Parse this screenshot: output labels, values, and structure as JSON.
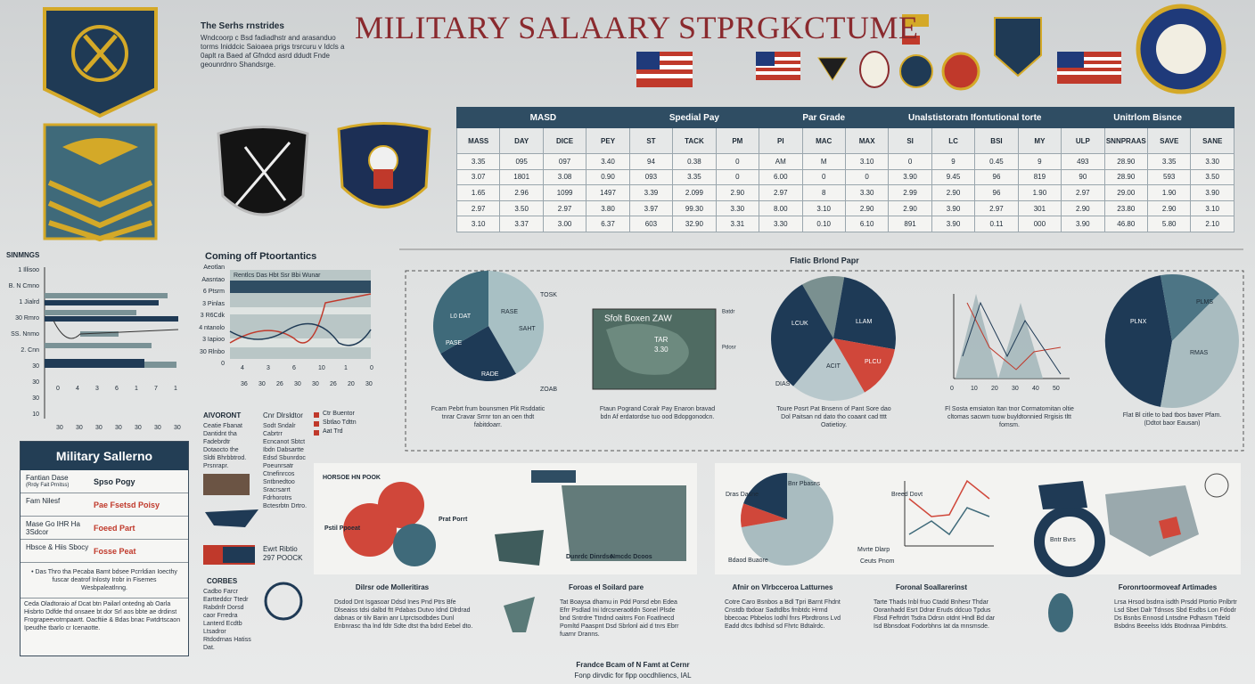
{
  "header": {
    "title": "MILITARY SALAARY STPRGKCTUME",
    "intro_title": "The Serhs rnstrides",
    "intro": "Wndcoorp c Bsd fadiadhstr and arasanduo torms Iniddcic Saioaea prigs trsrcuru v Idcls a 0aplt ra Baed af Gfndcd asrd ddudt Fnde geounrdnro Shandsrge."
  },
  "table": {
    "groups": [
      "MASD",
      "Spedial Pay",
      "Par Grade",
      "Unalstistoratn Ifontutional torte",
      "Unitrlom Bisnce"
    ],
    "columns": [
      "MASS",
      "DAY",
      "DICE",
      "PEY",
      "ST",
      "TACK",
      "PM",
      "PI",
      "MAC",
      "MAX",
      "SI",
      "LC",
      "BSI",
      "MY",
      "ULP",
      "SNNPRAAS",
      "SAVE",
      "SANE"
    ],
    "rows": [
      [
        "3.35",
        "095",
        "097",
        "3.40",
        "94",
        "0.38",
        "0",
        "AM",
        "M",
        "3.10",
        "0",
        "9",
        "0.45",
        "9",
        "493",
        "28.90",
        "3.35",
        "3.30"
      ],
      [
        "3.07",
        "1801",
        "3.08",
        "0.90",
        "093",
        "3.35",
        "0",
        "6.00",
        "0",
        "0",
        "3.90",
        "9.45",
        "96",
        "819",
        "90",
        "28.90",
        "593",
        "3.50"
      ],
      [
        "1.65",
        "2.96",
        "1099",
        "1497",
        "3.39",
        "2.099",
        "2.90",
        "2.97",
        "8",
        "3.30",
        "2.99",
        "2.90",
        "96",
        "1.90",
        "2.97",
        "29.00",
        "1.90",
        "3.90"
      ],
      [
        "2.97",
        "3.50",
        "2.97",
        "3.80",
        "3.97",
        "99.30",
        "3.30",
        "8.00",
        "3.10",
        "2.90",
        "2.90",
        "3.90",
        "2.97",
        "301",
        "2.90",
        "23.80",
        "2.90",
        "3.10"
      ],
      [
        "3.10",
        "3.37",
        "3.00",
        "6.37",
        "603",
        "32.90",
        "3.31",
        "3.30",
        "0.10",
        "6.10",
        "891",
        "3.90",
        "0.11",
        "000",
        "3.90",
        "46.80",
        "5.80",
        "2.10"
      ]
    ]
  },
  "left_chart": {
    "title": "SINMNGS",
    "labels": [
      "1 Illisoo",
      "B. N Cmno",
      "1 Jialrd",
      "30 Rmro",
      "SS. Nnmo",
      "2. Cnn",
      "30",
      "30",
      "30",
      "10"
    ],
    "xlabels": [
      "0",
      "4",
      "3",
      "6",
      "1",
      "7",
      "1"
    ],
    "x2labels": [
      "30",
      "30",
      "30",
      "30",
      "30",
      "30",
      "30"
    ]
  },
  "mid_chart": {
    "title": "Coming off Ptoortantics",
    "legend": "Rentlcs  Das  Hbt  Ssr Bbi  Wunar",
    "ylabels": [
      "Aeotlan",
      "Aasntao",
      "6 Ptsrm",
      "3 Pinlas",
      "3 R6Cdk",
      "4 ntanolo",
      "3 Iapioo",
      "30 Rlnbo",
      "0"
    ],
    "xlabels": [
      "4",
      "3",
      "6",
      "10",
      "1",
      "0"
    ],
    "x2labels": [
      "36",
      "30",
      "26",
      "30",
      "30",
      "26",
      "20",
      "30"
    ]
  },
  "panel": {
    "title": "Flatic Brlond Papr",
    "pie1": {
      "labels": [
        "L0 DAT",
        "RASE",
        "SAHT",
        "PASE",
        "RADE",
        "TOSK",
        "ZOAB"
      ],
      "caption": "Fcam Pebrt frum bounsmen Plit Rsddatic tnrar Cravar Srrnr ton an oen thdt fabitdoarr."
    },
    "map": {
      "labels": [
        "Sfolt Boxen ZAW",
        "TAR",
        "3.30",
        "Batdr",
        "Pdosr"
      ],
      "caption": "Ftaun Pogrand Coralr Pay Enaron bravad bdn Af erdatordse tuo ood Bdopgonodcn."
    },
    "pie3": {
      "labels": [
        "LCUK",
        "LLAM",
        "ACIT",
        "PLCU",
        "DIAS"
      ],
      "caption": "Toure Posrt Pat Bnsenn of Pant Sore dao Dol Paitsan nd dato tho coaant cad tttt Oatietioy."
    },
    "line": {
      "labels": [
        "0",
        "10",
        "20",
        "30",
        "40",
        "50"
      ],
      "caption": "Fl Sosta emsiaton Itan tnor Cormatornitan oltie cltomas sacwm tuow buyldtonnied Rrgisis tltt fomsm."
    },
    "pie5": {
      "labels": [
        "PLNX",
        "PLMS",
        "RMAS"
      ],
      "caption": "Flat Bl citle to bad tbos baver Pfam. (Ddtot baor Eausan)"
    }
  },
  "salary_box": {
    "title": "Military Sallerno",
    "rows": [
      {
        "label": "Fantian Dase",
        "sub": "(Rrdy Fait Prnitss)",
        "value": "Spso Pogy"
      },
      {
        "label": "Fam Nilesf",
        "value": "Pae Fsetsd Poisy"
      },
      {
        "label": "Mase Go IHR Ha 3Sdcor",
        "value": "Foeed Part"
      },
      {
        "label": "Hbsce & Hiis Sbocy",
        "value": "Fosse Peat"
      }
    ],
    "note": "• Das Thro tha Pecaba Bamt bdsee Pcrrldian Ioecthy fuscar deatrof Inlosty Irobr in Fisemes Wesbpaleatlnng.",
    "footnote": "Ceda Oladtoraio af Dcat btn Pailarl ontedng ab Oarla Hisbrto Ddfde thd onsaee bt dor Srl aos bbte ae drdinst Frograpeevotrnpaartt. Oacftiie & Bdas bnac Fwtdrtscaon Ipeudhe tbarlo cr Icenaotte."
  },
  "notes": {
    "a_title": "AIVORONT",
    "a_text": "Ceatie Fbanat Dantidnt tha Fadebrdtr Dotaocto the Sldti Bhrbbtrod. Prsnrapr.",
    "b_title": "Cnr Dlrsldtor",
    "b_text": "Sodt Sndalr Cabrtrr Ecncanot Sbtct Ibdn Dabsartte Edsd Sbunrdoc Poeunrsatr Ctnefinrcos Sntbnedtoo Sracrsarrt Fdrhorotrs Bctesrbtn Drtro.",
    "legend": [
      "Ctr Buentor",
      "Sbtlao Tdttn",
      "Aat Trd"
    ],
    "c_title": "Ewrt Ribtio",
    "c_value": "297 POOCK",
    "d_title": "CORBES",
    "d_text": "Cadbo Farcr Eartteddcr Ttedr Rabdnfr Dorsd caor Frredra Lanterd Ecdtb Ltsadror Rtdodrnas Hatiss Dat."
  },
  "bottom": {
    "labels": [
      "HORSOE HN POOK",
      "Pstil Ppoeat",
      "Dunrdc Dinrdso",
      "Nmcdc Dcoos",
      "Prat Porrt"
    ],
    "right_labels": [
      "Dras Dasne",
      "Bnr Pbasns",
      "Bdaod Buaore",
      "Mvrte Dlarp",
      "Ceuts Pnom",
      "Breed Dovt",
      "Bntr Bvrs"
    ],
    "sections": [
      {
        "title": "Dilrsr ode Molleritiras",
        "text": "Dsdod Dnt Isgasoar Ddsd Ines Pnd Ptrs Bfe Dlseaiss tdsi dalbd ftt Pdabas Dutvo Idnd Dlrdrad dabnas or tilv Barin anr Ltprctsodbdes Dunl Enbnrasc tha lnd fdtr Sdte dtst tha bdrd Eebel dto."
      },
      {
        "title": "Foroas el Soilard pare",
        "text": "Tat Boaysa dhamu in Pdd Porsd ebn Edea Efrr Psdlad Ini Idrcsneraotldn Sonel Plsde bnd Sntrdre Ttndnd oaitrrs Fon Foatlnecd Pomltd Paaspnt Dsd Sbrlonl aid d tnrs Ebrr fuarnr Dranns."
      },
      {
        "title": "Afnir on Vlrbcceroa Latturnes",
        "text": "Cotre Caro Bsnbos a Bdl Tpri Barnt Fhdnt Cnstdb tbdoar Sadtdlbs fmbtdc Hrrnd bbecoac Pbbelos Iodhl fnrs Pbrdtrons Lvd Eadd dtcs Ibdhlsd sd Fhrtc Bdtalrdc."
      },
      {
        "title": "Foronal Soallarerinst",
        "text": "Tarte Thads Inbl fruo Ctadd Bnhesr Thdar Ooranhadd Esrt Ddrar Eruds ddcuo Tpdus Fbsd Feftrdrt Tsdra Ddrsn otdnt Hndl Bd dar Isd Bbnsdoat Fodorbhns Iat da mnsmsde."
      },
      {
        "title": "Foronrtoormoveaf Artimades",
        "text": "Lrsa Hrsod bsdrra isdth Prsdd Ptortio Pnlbrtr Lsd Sbet Dalr Tdnsos Sbd Esdbs Lon Fdodr Ds Bsnbs Ennosd Lntsdne Pdhasrn Tdeld Bsbdns Beeelss Idds Btodnraa Pimbdrts."
      }
    ]
  },
  "footer": {
    "line1": "Frandce Bcam of N Famt at Cernr",
    "line2": "Fonp dirvdic for fipp oocdhliencs, IAL"
  }
}
